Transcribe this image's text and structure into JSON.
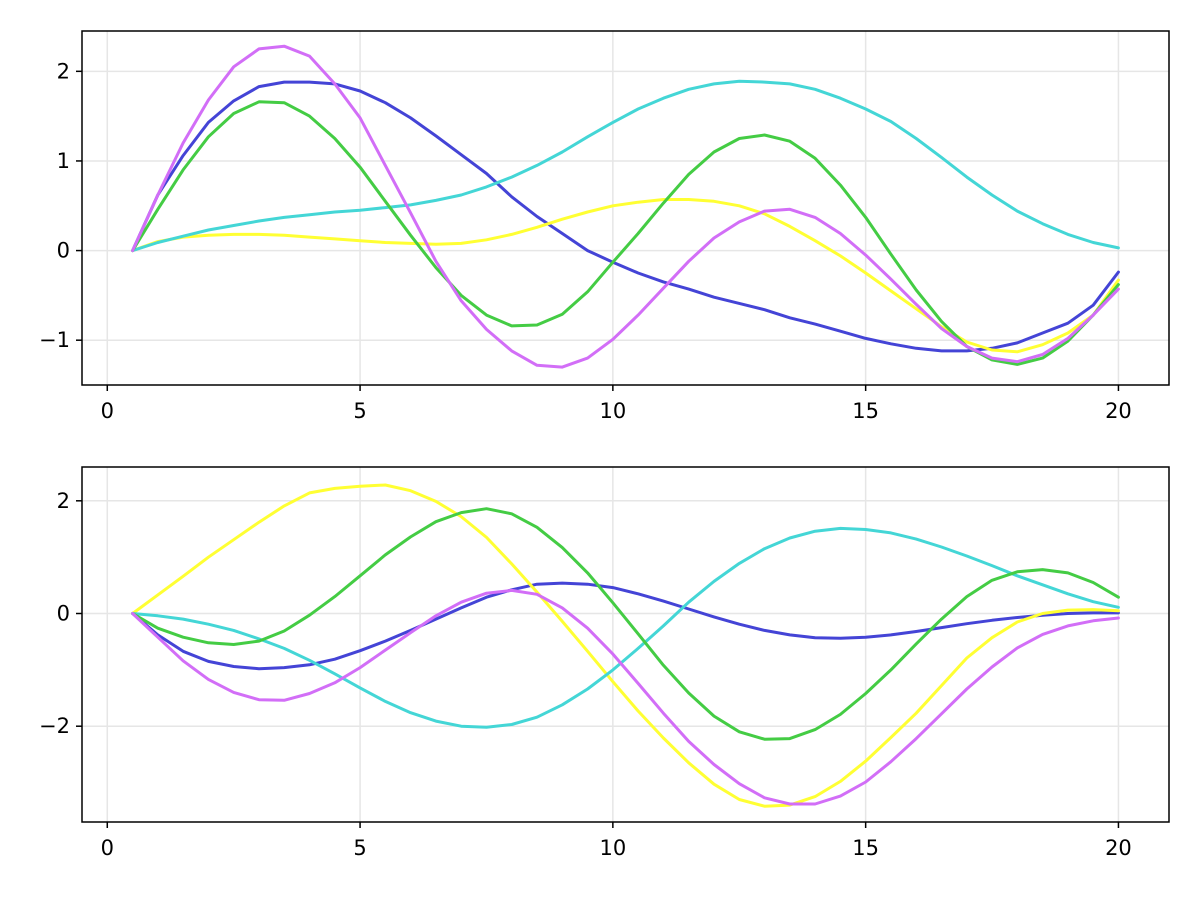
{
  "chart_data": [
    {
      "type": "line",
      "xlim": [
        -0.5,
        21
      ],
      "ylim": [
        -1.5,
        2.45
      ],
      "xticks": [
        0,
        5,
        10,
        15,
        20
      ],
      "xtick_labels": [
        "0",
        "5",
        "10",
        "15",
        "20"
      ],
      "yticks": [
        -1,
        0,
        1,
        2
      ],
      "ytick_labels": [
        "−1",
        "0",
        "1",
        "2"
      ],
      "grid": true,
      "x": [
        0.5,
        1,
        1.5,
        2,
        2.5,
        3,
        3.5,
        4,
        4.5,
        5,
        5.5,
        6,
        6.5,
        7,
        7.5,
        8,
        8.5,
        9,
        9.5,
        10,
        10.5,
        11,
        11.5,
        12,
        12.5,
        13,
        13.5,
        14,
        14.5,
        15,
        15.5,
        16,
        16.5,
        17,
        17.5,
        18,
        18.5,
        19,
        19.5,
        20
      ],
      "series": [
        {
          "color": "#4444d6",
          "values": [
            0,
            0.62,
            1.06,
            1.43,
            1.67,
            1.83,
            1.88,
            1.88,
            1.86,
            1.78,
            1.65,
            1.48,
            1.28,
            1.07,
            0.86,
            0.6,
            0.38,
            0.19,
            0.0,
            -0.13,
            -0.25,
            -0.35,
            -0.43,
            -0.52,
            -0.59,
            -0.66,
            -0.75,
            -0.82,
            -0.9,
            -0.98,
            -1.04,
            -1.09,
            -1.12,
            -1.12,
            -1.09,
            -1.03,
            -0.92,
            -0.81,
            -0.61,
            -0.24
          ]
        },
        {
          "color": "#ffff33",
          "values": [
            0,
            0.1,
            0.15,
            0.17,
            0.18,
            0.18,
            0.17,
            0.15,
            0.13,
            0.11,
            0.09,
            0.08,
            0.07,
            0.08,
            0.12,
            0.18,
            0.26,
            0.35,
            0.43,
            0.5,
            0.54,
            0.57,
            0.57,
            0.55,
            0.5,
            0.41,
            0.27,
            0.11,
            -0.06,
            -0.25,
            -0.45,
            -0.65,
            -0.85,
            -1.02,
            -1.11,
            -1.13,
            -1.05,
            -0.92,
            -0.72,
            -0.33
          ]
        },
        {
          "color": "#44d6d6",
          "values": [
            0,
            0.09,
            0.16,
            0.23,
            0.28,
            0.33,
            0.37,
            0.4,
            0.43,
            0.45,
            0.48,
            0.51,
            0.56,
            0.62,
            0.71,
            0.82,
            0.95,
            1.1,
            1.27,
            1.43,
            1.58,
            1.7,
            1.8,
            1.86,
            1.89,
            1.88,
            1.86,
            1.8,
            1.7,
            1.58,
            1.44,
            1.25,
            1.04,
            0.82,
            0.62,
            0.44,
            0.3,
            0.18,
            0.09,
            0.03
          ]
        },
        {
          "color": "#44cc44",
          "values": [
            0,
            0.46,
            0.9,
            1.27,
            1.53,
            1.66,
            1.65,
            1.5,
            1.25,
            0.93,
            0.55,
            0.17,
            -0.19,
            -0.5,
            -0.72,
            -0.84,
            -0.83,
            -0.71,
            -0.46,
            -0.13,
            0.19,
            0.53,
            0.85,
            1.1,
            1.25,
            1.29,
            1.22,
            1.03,
            0.73,
            0.37,
            -0.04,
            -0.44,
            -0.79,
            -1.07,
            -1.22,
            -1.27,
            -1.2,
            -1.01,
            -0.72,
            -0.38
          ]
        },
        {
          "color": "#d26ef7",
          "values": [
            0,
            0.62,
            1.2,
            1.68,
            2.05,
            2.25,
            2.28,
            2.17,
            1.86,
            1.48,
            0.95,
            0.42,
            -0.12,
            -0.56,
            -0.88,
            -1.12,
            -1.28,
            -1.3,
            -1.2,
            -0.99,
            -0.72,
            -0.42,
            -0.12,
            0.14,
            0.32,
            0.44,
            0.46,
            0.37,
            0.19,
            -0.05,
            -0.32,
            -0.6,
            -0.87,
            -1.07,
            -1.2,
            -1.24,
            -1.16,
            -0.98,
            -0.72,
            -0.43
          ]
        }
      ]
    },
    {
      "type": "line",
      "xlim": [
        -0.5,
        21
      ],
      "ylim": [
        -3.7,
        2.6
      ],
      "xticks": [
        0,
        5,
        10,
        15,
        20
      ],
      "xtick_labels": [
        "0",
        "5",
        "10",
        "15",
        "20"
      ],
      "yticks": [
        -2,
        0,
        2
      ],
      "ytick_labels": [
        "−2",
        "0",
        "2"
      ],
      "grid": true,
      "x": [
        0.5,
        1,
        1.5,
        2,
        2.5,
        3,
        3.5,
        4,
        4.5,
        5,
        5.5,
        6,
        6.5,
        7,
        7.5,
        8,
        8.5,
        9,
        9.5,
        10,
        10.5,
        11,
        11.5,
        12,
        12.5,
        13,
        13.5,
        14,
        14.5,
        15,
        15.5,
        16,
        16.5,
        17,
        17.5,
        18,
        18.5,
        19,
        19.5,
        20
      ],
      "series": [
        {
          "color": "#4444d6",
          "values": [
            0,
            -0.38,
            -0.67,
            -0.85,
            -0.94,
            -0.98,
            -0.96,
            -0.91,
            -0.81,
            -0.66,
            -0.49,
            -0.3,
            -0.1,
            0.1,
            0.29,
            0.42,
            0.52,
            0.54,
            0.52,
            0.46,
            0.35,
            0.22,
            0.08,
            -0.06,
            -0.19,
            -0.3,
            -0.38,
            -0.43,
            -0.44,
            -0.42,
            -0.38,
            -0.32,
            -0.25,
            -0.18,
            -0.12,
            -0.07,
            -0.03,
            0.0,
            0.01,
            0.01
          ]
        },
        {
          "color": "#ffff33",
          "values": [
            0,
            0.33,
            0.66,
            1.0,
            1.31,
            1.62,
            1.91,
            2.14,
            2.22,
            2.26,
            2.28,
            2.18,
            1.99,
            1.72,
            1.35,
            0.88,
            0.38,
            -0.14,
            -0.67,
            -1.21,
            -1.73,
            -2.21,
            -2.65,
            -3.03,
            -3.3,
            -3.42,
            -3.4,
            -3.25,
            -2.98,
            -2.62,
            -2.2,
            -1.77,
            -1.28,
            -0.79,
            -0.43,
            -0.15,
            0.0,
            0.06,
            0.07,
            0.05
          ]
        },
        {
          "color": "#44d6d6",
          "values": [
            0,
            -0.04,
            -0.1,
            -0.19,
            -0.3,
            -0.45,
            -0.62,
            -0.83,
            -1.07,
            -1.32,
            -1.56,
            -1.76,
            -1.91,
            -2.0,
            -2.02,
            -1.97,
            -1.84,
            -1.62,
            -1.34,
            -1.0,
            -0.62,
            -0.22,
            0.2,
            0.57,
            0.89,
            1.15,
            1.34,
            1.46,
            1.51,
            1.49,
            1.43,
            1.32,
            1.18,
            1.02,
            0.85,
            0.67,
            0.51,
            0.35,
            0.21,
            0.11
          ]
        },
        {
          "color": "#44cc44",
          "values": [
            0,
            -0.26,
            -0.42,
            -0.52,
            -0.55,
            -0.49,
            -0.31,
            -0.03,
            0.3,
            0.67,
            1.04,
            1.36,
            1.63,
            1.79,
            1.86,
            1.77,
            1.53,
            1.17,
            0.72,
            0.19,
            -0.36,
            -0.92,
            -1.41,
            -1.82,
            -2.1,
            -2.23,
            -2.22,
            -2.06,
            -1.79,
            -1.42,
            -1.0,
            -0.54,
            -0.1,
            0.3,
            0.59,
            0.74,
            0.78,
            0.72,
            0.55,
            0.29
          ]
        },
        {
          "color": "#d26ef7",
          "values": [
            0,
            -0.42,
            -0.84,
            -1.17,
            -1.4,
            -1.53,
            -1.54,
            -1.42,
            -1.23,
            -0.96,
            -0.65,
            -0.34,
            -0.04,
            0.2,
            0.36,
            0.41,
            0.34,
            0.1,
            -0.26,
            -0.72,
            -1.24,
            -1.77,
            -2.27,
            -2.68,
            -3.02,
            -3.27,
            -3.38,
            -3.38,
            -3.24,
            -2.99,
            -2.63,
            -2.22,
            -1.78,
            -1.34,
            -0.95,
            -0.61,
            -0.37,
            -0.22,
            -0.13,
            -0.08
          ]
        }
      ]
    }
  ]
}
